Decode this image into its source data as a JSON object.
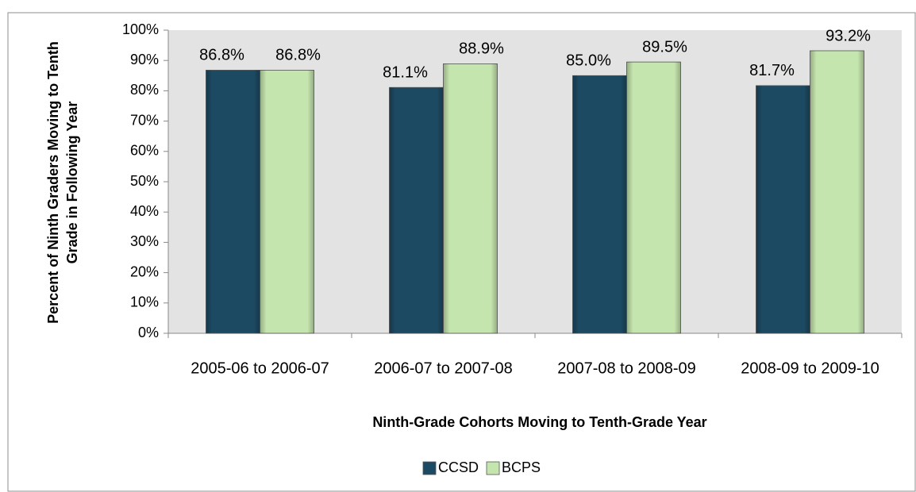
{
  "chart_data": {
    "type": "bar",
    "ylabel": [
      "Percent of Ninth Graders Moving to Tenth",
      "Grade in Following Year"
    ],
    "xlabel": "Ninth-Grade Cohorts Moving to Tenth-Grade Year",
    "categories": [
      "2005-06 to 2006-07",
      "2006-07 to 2007-08",
      "2007-08 to 2008-09",
      "2008-09 to 2009-10"
    ],
    "series": [
      {
        "name": "CCSD",
        "color": "#1d4a63",
        "values": [
          86.8,
          81.1,
          85.0,
          81.7
        ],
        "value_labels": [
          "86.8%",
          "81.1%",
          "85.0%",
          "81.7%"
        ]
      },
      {
        "name": "BCPS",
        "color": "#c4e5ae",
        "values": [
          86.8,
          88.9,
          89.5,
          93.2
        ],
        "value_labels": [
          "86.8%",
          "88.9%",
          "89.5%",
          "93.2%"
        ]
      }
    ],
    "ylim": [
      0,
      100
    ],
    "yticks": [
      {
        "value": 0,
        "label": "0%"
      },
      {
        "value": 10,
        "label": "10%"
      },
      {
        "value": 20,
        "label": "20%"
      },
      {
        "value": 30,
        "label": "30%"
      },
      {
        "value": 40,
        "label": "40%"
      },
      {
        "value": 50,
        "label": "50%"
      },
      {
        "value": 60,
        "label": "60%"
      },
      {
        "value": 70,
        "label": "70%"
      },
      {
        "value": 80,
        "label": "80%"
      },
      {
        "value": 90,
        "label": "90%"
      },
      {
        "value": 100,
        "label": "100%"
      }
    ],
    "legend": "bottom"
  }
}
